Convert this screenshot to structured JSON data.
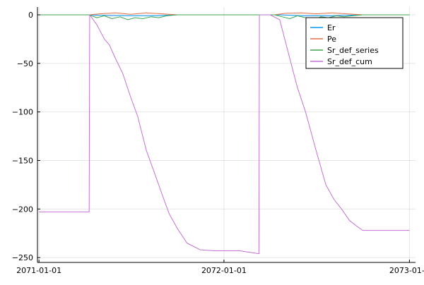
{
  "colors": {
    "Er": "#009af9",
    "Pe": "#e26f46",
    "Sr_def_series": "#3da44d",
    "Sr_def_cum": "#c271d2"
  },
  "chart_data": {
    "type": "line",
    "title": "",
    "xlabel": "",
    "ylabel": "",
    "x_axis_kind": "date",
    "xlim": [
      "2070-12-29",
      "2073-01-13"
    ],
    "ylim": [
      -255,
      8
    ],
    "x_ticks": [
      "2071-01-01",
      "2072-01-01",
      "2073-01-01"
    ],
    "x_tick_labels": [
      "2071-01-01",
      "2072-01-01",
      "2073-01-0"
    ],
    "y_ticks": [
      0,
      -50,
      -100,
      -150,
      -200,
      -250
    ],
    "grid": true,
    "legend_position": "top-right",
    "series": [
      {
        "name": "Er",
        "x": [
          "2071-01-01",
          "2071-04-10",
          "2071-05-01",
          "2071-07-01",
          "2071-08-20",
          "2071-10-01",
          "2072-03-01",
          "2072-04-20",
          "2072-06-01",
          "2072-08-01",
          "2072-10-01",
          "2073-01-01"
        ],
        "values": [
          0,
          0,
          -0.5,
          -1,
          -1,
          0,
          0,
          0,
          -1,
          -1,
          0,
          0
        ]
      },
      {
        "name": "Pe",
        "x": [
          "2071-01-01",
          "2071-04-10",
          "2071-05-01",
          "2071-06-01",
          "2071-07-01",
          "2071-08-01",
          "2071-09-01",
          "2071-10-01",
          "2072-03-01",
          "2072-04-10",
          "2072-05-01",
          "2072-06-01",
          "2072-07-01",
          "2072-08-01",
          "2072-10-01",
          "2073-01-01"
        ],
        "values": [
          0,
          0,
          1,
          2,
          0.5,
          2,
          1,
          0,
          0,
          0,
          1.5,
          2,
          1,
          2,
          0,
          0
        ]
      },
      {
        "name": "Sr_def_series",
        "x": [
          "2071-01-01",
          "2071-04-10",
          "2071-04-25",
          "2071-05-10",
          "2071-05-25",
          "2071-06-10",
          "2071-06-25",
          "2071-07-10",
          "2071-07-25",
          "2071-08-10",
          "2071-08-25",
          "2071-09-10",
          "2071-10-01",
          "2072-03-01",
          "2072-04-10",
          "2072-04-25",
          "2072-05-10",
          "2072-05-25",
          "2072-06-10",
          "2072-06-25",
          "2072-07-10",
          "2072-07-25",
          "2072-08-10",
          "2072-08-25",
          "2072-09-10",
          "2072-10-01",
          "2073-01-01"
        ],
        "values": [
          0,
          0,
          -3,
          -1,
          -4,
          -2,
          -5,
          -3,
          -4,
          -2,
          -3,
          -1,
          0,
          0,
          0,
          -2,
          -4,
          -1,
          -3,
          -5,
          -2,
          -3,
          -1,
          -2,
          -1,
          0,
          0
        ]
      },
      {
        "name": "Sr_def_cum",
        "x": [
          "2071-01-01",
          "2071-04-10",
          "2071-04-11",
          "2071-04-25",
          "2071-05-10",
          "2071-05-20",
          "2071-06-01",
          "2071-06-15",
          "2071-07-01",
          "2071-07-15",
          "2071-08-01",
          "2071-08-15",
          "2071-09-01",
          "2071-09-15",
          "2071-10-01",
          "2071-10-20",
          "2071-11-15",
          "2071-12-15",
          "2072-02-01",
          "2072-03-10",
          "2072-03-11",
          "2072-04-01",
          "2072-04-20",
          "2072-05-10",
          "2072-05-25",
          "2072-06-10",
          "2072-07-01",
          "2072-07-20",
          "2072-08-05",
          "2072-08-20",
          "2072-09-05",
          "2072-09-20",
          "2072-10-01",
          "2072-10-15",
          "2072-11-01",
          "2072-12-01",
          "2073-01-01"
        ],
        "values": [
          -203,
          -203,
          0,
          -10,
          -25,
          -31,
          -45,
          -60,
          -85,
          -105,
          -140,
          -160,
          -185,
          -205,
          -220,
          -235,
          -242,
          -243,
          -243,
          -246,
          0,
          0,
          -5,
          -45,
          -75,
          -100,
          -140,
          -175,
          -190,
          -200,
          -212,
          -218,
          -222,
          -222,
          -222,
          -222,
          -222
        ]
      }
    ]
  }
}
